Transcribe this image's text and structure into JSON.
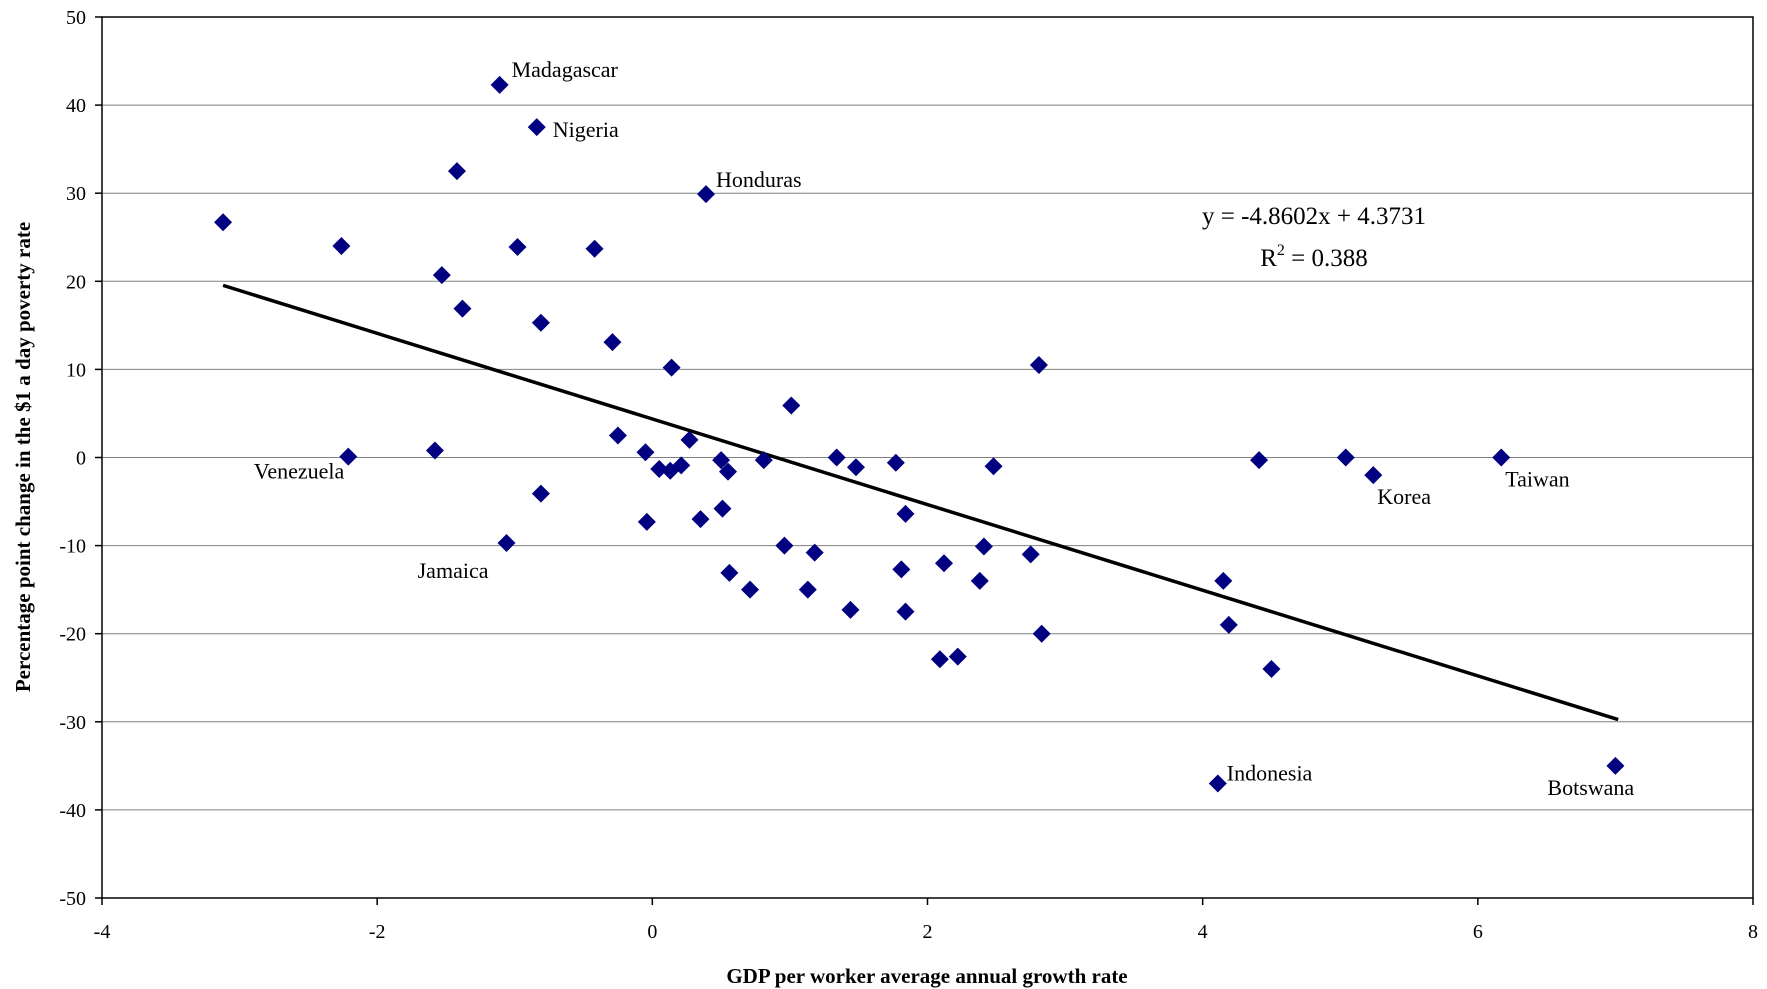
{
  "chart_data": {
    "type": "scatter",
    "xlabel": "GDP per worker average annual growth rate",
    "ylabel": "Percentage point change in the $1 a day poverty rate",
    "xlim": [
      -4,
      8
    ],
    "ylim": [
      -50,
      50
    ],
    "x_ticks": [
      "-4",
      "-2",
      "0",
      "2",
      "4",
      "6",
      "8"
    ],
    "y_ticks": [
      "50",
      "40",
      "30",
      "20",
      "10",
      "0",
      "-10",
      "-20",
      "-30",
      "-40",
      "-50"
    ],
    "grid": "horizontal",
    "marker_color": "#000080",
    "trendline_color": "#000000",
    "trendline": {
      "slope": -4.8602,
      "intercept": 4.3731,
      "x_range": [
        -3.12,
        7.02
      ]
    },
    "equation_text": "y = -4.8602x + 4.3731",
    "r2_prefix": "R",
    "r2_sup": "2",
    "r2_suffix": " = 0.388",
    "points": [
      {
        "x": -1.11,
        "y": 42.3,
        "label": "Madagascar"
      },
      {
        "x": -0.84,
        "y": 37.5,
        "label": "Nigeria"
      },
      {
        "x": 0.39,
        "y": 29.9,
        "label": "Honduras"
      },
      {
        "x": -1.42,
        "y": 32.5
      },
      {
        "x": -3.12,
        "y": 26.7
      },
      {
        "x": -2.26,
        "y": 24.0
      },
      {
        "x": -0.98,
        "y": 23.9
      },
      {
        "x": -0.42,
        "y": 23.7
      },
      {
        "x": -1.53,
        "y": 20.7
      },
      {
        "x": -1.38,
        "y": 16.9
      },
      {
        "x": -0.81,
        "y": 15.3
      },
      {
        "x": -0.29,
        "y": 13.1
      },
      {
        "x": 0.14,
        "y": 10.2
      },
      {
        "x": 2.81,
        "y": 10.5
      },
      {
        "x": 1.01,
        "y": 5.9
      },
      {
        "x": -0.25,
        "y": 2.5
      },
      {
        "x": 0.27,
        "y": 2.0
      },
      {
        "x": -0.05,
        "y": 0.6
      },
      {
        "x": -2.21,
        "y": 0.1,
        "label": "Venezuela"
      },
      {
        "x": -1.58,
        "y": 0.8
      },
      {
        "x": 0.05,
        "y": -1.3
      },
      {
        "x": 0.13,
        "y": -1.5
      },
      {
        "x": 0.21,
        "y": -0.9
      },
      {
        "x": 0.5,
        "y": -0.3
      },
      {
        "x": 0.55,
        "y": -1.6
      },
      {
        "x": 0.81,
        "y": -0.3
      },
      {
        "x": 1.34,
        "y": 0.0
      },
      {
        "x": 1.48,
        "y": -1.1
      },
      {
        "x": 1.77,
        "y": -0.6
      },
      {
        "x": 2.48,
        "y": -1.0
      },
      {
        "x": 4.41,
        "y": -0.3
      },
      {
        "x": 5.04,
        "y": 0.0
      },
      {
        "x": 5.24,
        "y": -2.0,
        "label": "Korea"
      },
      {
        "x": 6.17,
        "y": 0.0,
        "label": "Taiwan"
      },
      {
        "x": -0.81,
        "y": -4.1
      },
      {
        "x": -0.04,
        "y": -7.3
      },
      {
        "x": 0.35,
        "y": -7.0
      },
      {
        "x": 0.51,
        "y": -5.8
      },
      {
        "x": 1.84,
        "y": -6.4
      },
      {
        "x": -1.06,
        "y": -9.7,
        "label": "Jamaica"
      },
      {
        "x": 0.56,
        "y": -13.1
      },
      {
        "x": 0.71,
        "y": -15.0
      },
      {
        "x": 0.96,
        "y": -10.0
      },
      {
        "x": 1.13,
        "y": -15.0
      },
      {
        "x": 1.18,
        "y": -10.8
      },
      {
        "x": 1.44,
        "y": -17.3
      },
      {
        "x": 1.81,
        "y": -12.7
      },
      {
        "x": 1.84,
        "y": -17.5
      },
      {
        "x": 2.12,
        "y": -12.0
      },
      {
        "x": 2.09,
        "y": -22.9
      },
      {
        "x": 2.22,
        "y": -22.6
      },
      {
        "x": 2.38,
        "y": -14.0
      },
      {
        "x": 2.41,
        "y": -10.1
      },
      {
        "x": 2.75,
        "y": -11.0
      },
      {
        "x": 2.83,
        "y": -20.0
      },
      {
        "x": 4.15,
        "y": -14.0
      },
      {
        "x": 4.19,
        "y": -19.0
      },
      {
        "x": 4.5,
        "y": -24.0
      },
      {
        "x": 4.11,
        "y": -37.0,
        "label": "Indonesia"
      },
      {
        "x": 7.0,
        "y": -35.0,
        "label": "Botswana"
      }
    ]
  }
}
